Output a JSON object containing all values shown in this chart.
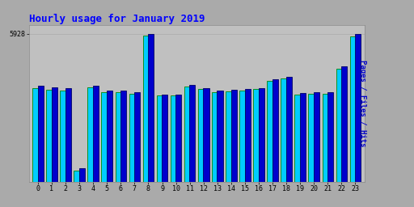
{
  "title": "Hourly usage for January 2019",
  "ylabel": "Pages / Files / Hits",
  "hours": [
    0,
    1,
    2,
    3,
    4,
    5,
    6,
    7,
    8,
    9,
    10,
    11,
    12,
    13,
    14,
    15,
    16,
    17,
    18,
    19,
    20,
    21,
    22,
    23
  ],
  "files": [
    3750,
    3700,
    3650,
    470,
    3790,
    3610,
    3590,
    3540,
    5860,
    3450,
    3450,
    3830,
    3710,
    3600,
    3640,
    3660,
    3710,
    4050,
    4140,
    3510,
    3520,
    3530,
    4530,
    5820
  ],
  "hits": [
    3850,
    3800,
    3760,
    550,
    3860,
    3670,
    3650,
    3600,
    5928,
    3500,
    3500,
    3900,
    3770,
    3650,
    3700,
    3720,
    3770,
    4120,
    4220,
    3570,
    3580,
    3590,
    4630,
    5910
  ],
  "bar_color_cyan": "#00ccff",
  "bar_color_blue": "#0000cc",
  "bar_edge_cyan": "#008800",
  "bar_edge_blue": "#000066",
  "background_color": "#aaaaaa",
  "plot_bg_color": "#c0c0c0",
  "title_color": "#0000ff",
  "ylabel_color": "#0000cc",
  "ymax": 5928,
  "ytick_label": "5928",
  "title_fontsize": 9,
  "ylabel_fontsize": 6.5,
  "tick_fontsize": 6,
  "xlabel_fontsize": 6
}
